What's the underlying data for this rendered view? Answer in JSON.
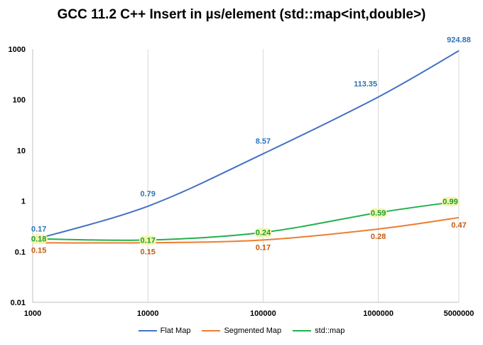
{
  "chart_data": {
    "type": "line",
    "title": "GCC 11.2 C++ Insert in µs/element  (std::map<int,double>)",
    "x": [
      1000,
      10000,
      100000,
      1000000,
      5000000
    ],
    "xscale": "log",
    "yscale": "log",
    "xlim": [
      1000,
      5000000
    ],
    "ylim": [
      0.01,
      1000
    ],
    "xticks": [
      "1000",
      "10000",
      "100000",
      "1000000",
      "5000000"
    ],
    "yticks": [
      "0.01",
      "0.1",
      "1",
      "10",
      "100",
      "1000"
    ],
    "grid": "vertical",
    "legend_position": "bottom",
    "series": [
      {
        "name": "Flat Map",
        "color": "#4472c4",
        "label_color": "#2e75b6",
        "values": [
          0.17,
          0.79,
          8.57,
          113.35,
          924.88
        ],
        "labels": [
          "0.17",
          "0.79",
          "8.57",
          "113.35",
          "924.88"
        ]
      },
      {
        "name": "Segmented Map",
        "color": "#ed7d31",
        "label_color": "#c55a11",
        "values": [
          0.15,
          0.15,
          0.17,
          0.28,
          0.47
        ],
        "labels": [
          "0.15",
          "0.15",
          "0.17",
          "0.28",
          "0.47"
        ]
      },
      {
        "name": "std::map",
        "color": "#22b14c",
        "label_color": "#1e9a3c",
        "label_bg": "#f2f7a8",
        "values": [
          0.18,
          0.17,
          0.24,
          0.59,
          0.99
        ],
        "labels": [
          "0.18",
          "0.17",
          "0.24",
          "0.59",
          "0.99"
        ]
      }
    ]
  }
}
